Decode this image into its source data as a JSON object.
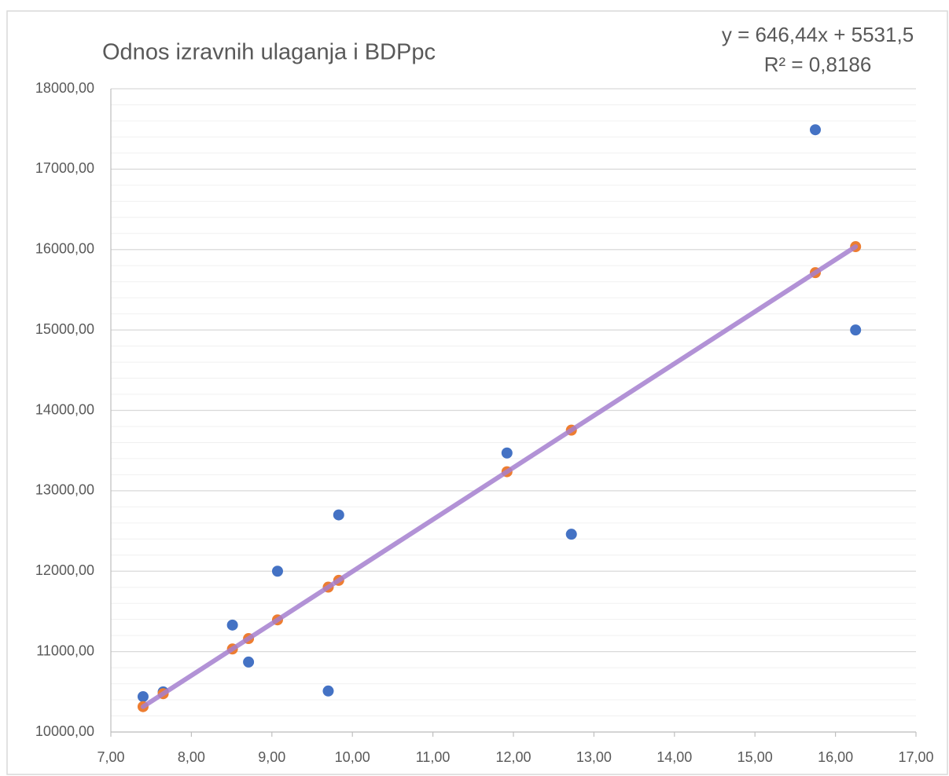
{
  "chart_data": {
    "type": "scatter",
    "title": "Odnos izravnih ulaganja i BDPpc",
    "annotations": [
      "y = 646,44x + 5531,5",
      "R² = 0,8186"
    ],
    "series": [
      {
        "color": "#4472c4",
        "x": [
          7.4,
          7.65,
          8.51,
          8.71,
          9.07,
          9.7,
          9.83,
          11.92,
          12.72,
          15.75,
          16.25
        ],
        "values": [
          10440,
          10500,
          11330,
          10870,
          12000,
          10510,
          12700,
          13470,
          12460,
          17490,
          15000
        ]
      },
      {
        "color": "#ed7d31",
        "line_color": "#a47fcf",
        "x": [
          7.4,
          7.65,
          8.51,
          8.71,
          9.07,
          9.7,
          9.83,
          11.92,
          12.72,
          15.75,
          16.25
        ],
        "values": [
          10315.2,
          10476.8,
          11032.7,
          11162.0,
          11394.7,
          11802.0,
          11886.0,
          13237.1,
          13754.2,
          15712.9,
          16036.2
        ]
      }
    ],
    "xlim": [
      7,
      17
    ],
    "xticks": [
      {
        "value": 7,
        "label": "7,00"
      },
      {
        "value": 8,
        "label": "8,00"
      },
      {
        "value": 9,
        "label": "9,00"
      },
      {
        "value": 10,
        "label": "10,00"
      },
      {
        "value": 11,
        "label": "11,00"
      },
      {
        "value": 12,
        "label": "12,00"
      },
      {
        "value": 13,
        "label": "13,00"
      },
      {
        "value": 14,
        "label": "14,00"
      },
      {
        "value": 15,
        "label": "15,00"
      },
      {
        "value": 16,
        "label": "16,00"
      },
      {
        "value": 17,
        "label": "17,00"
      }
    ],
    "ylim": [
      10000,
      18000
    ],
    "yticks": [
      {
        "value": 10000,
        "label": "10000,00"
      },
      {
        "value": 11000,
        "label": "11000,00"
      },
      {
        "value": 12000,
        "label": "12000,00"
      },
      {
        "value": 13000,
        "label": "13000,00"
      },
      {
        "value": 14000,
        "label": "14000,00"
      },
      {
        "value": 15000,
        "label": "15000,00"
      },
      {
        "value": 16000,
        "label": "16000,00"
      },
      {
        "value": 17000,
        "label": "17000,00"
      },
      {
        "value": 18000,
        "label": "18000,00"
      }
    ],
    "grid": true,
    "minor_grid": true
  }
}
